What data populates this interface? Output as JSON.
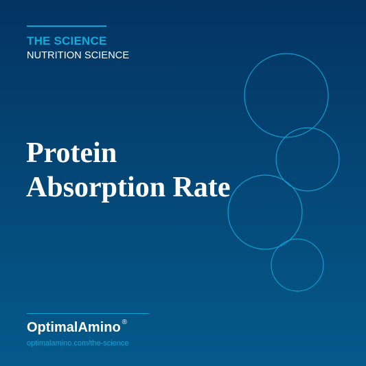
{
  "header": {
    "eyebrow": "THE SCIENCE",
    "category": "NUTRITION SCIENCE"
  },
  "title": {
    "line1": "Protein",
    "line2": "Absorption Rate"
  },
  "footer": {
    "brand": "OptimalAmino",
    "registered_mark": "®",
    "url": "optimalamino.com/the-science"
  },
  "colors": {
    "accent": "#0aa6d8",
    "background_top": "#033462",
    "background_bottom": "#045a8b",
    "text": "#ffffff"
  }
}
